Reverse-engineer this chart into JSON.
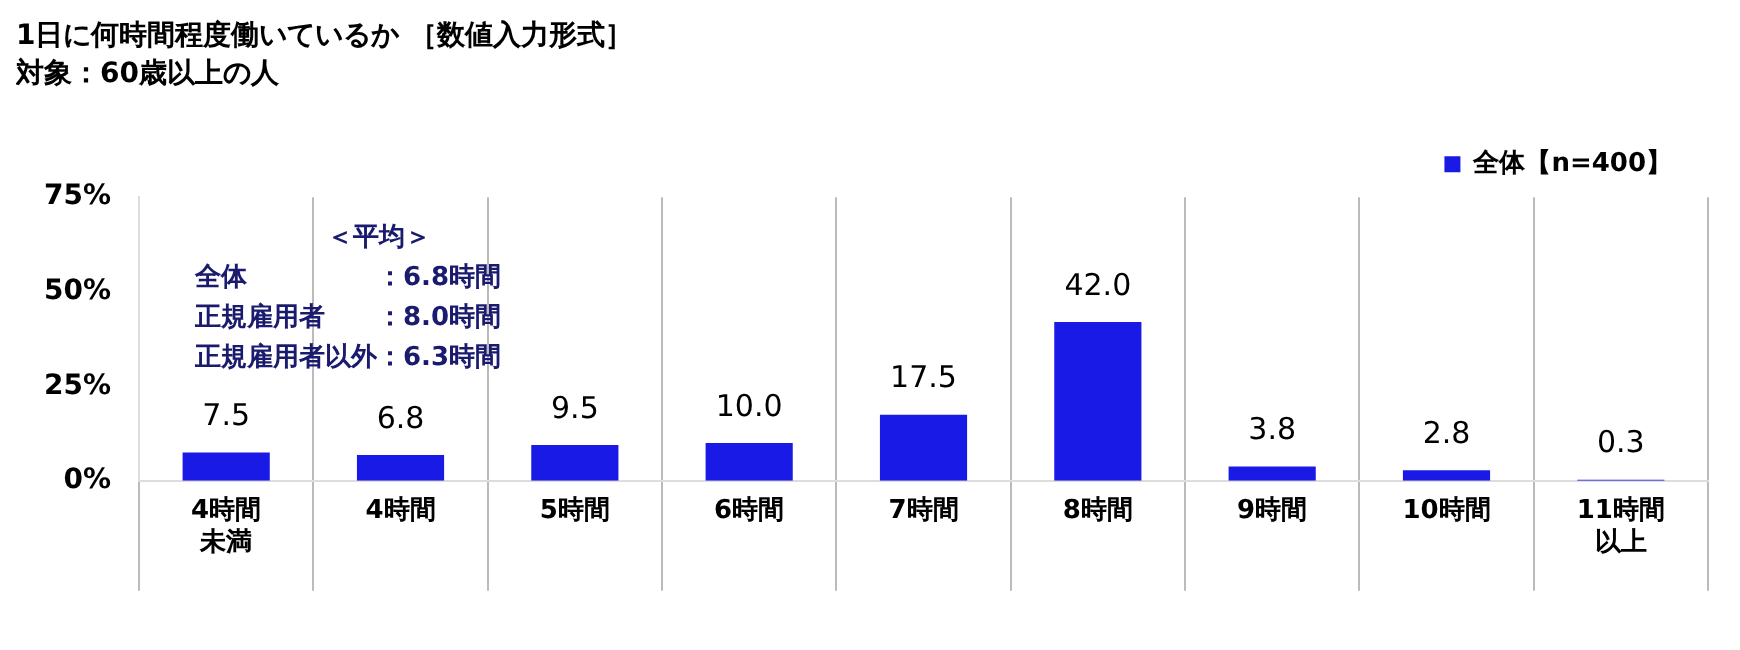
{
  "chart_data": {
    "type": "bar",
    "title": "1日に何時間程度働いているか ［数値入力形式］",
    "subtitle": "対象：60歳以上の人",
    "categories": [
      "4時間未満",
      "4時間",
      "5時間",
      "6時間",
      "7時間",
      "8時間",
      "9時間",
      "10時間",
      "11時間以上"
    ],
    "series": [
      {
        "name": "全体【n=400】",
        "color": "#1a1ae6",
        "values": [
          7.5,
          6.8,
          9.5,
          10.0,
          17.5,
          42.0,
          3.8,
          2.8,
          0.3
        ],
        "value_labels": [
          "7.5",
          "6.8",
          "9.5",
          "10.0",
          "17.5",
          "42.0",
          "3.8",
          "2.8",
          "0.3"
        ]
      }
    ],
    "ylim": [
      0,
      75
    ],
    "yticks": [
      {
        "value": 0,
        "label": "0%"
      },
      {
        "value": 25,
        "label": "25%"
      },
      {
        "value": 50,
        "label": "50%"
      },
      {
        "value": 75,
        "label": "75%"
      }
    ],
    "grid": "x",
    "legend": "top right",
    "annotations": [
      "＜平均＞",
      "全体　　　　　：6.8時間",
      "正規雇用者　　：8.0時間",
      "正規雇用者以外：6.3時間"
    ]
  }
}
